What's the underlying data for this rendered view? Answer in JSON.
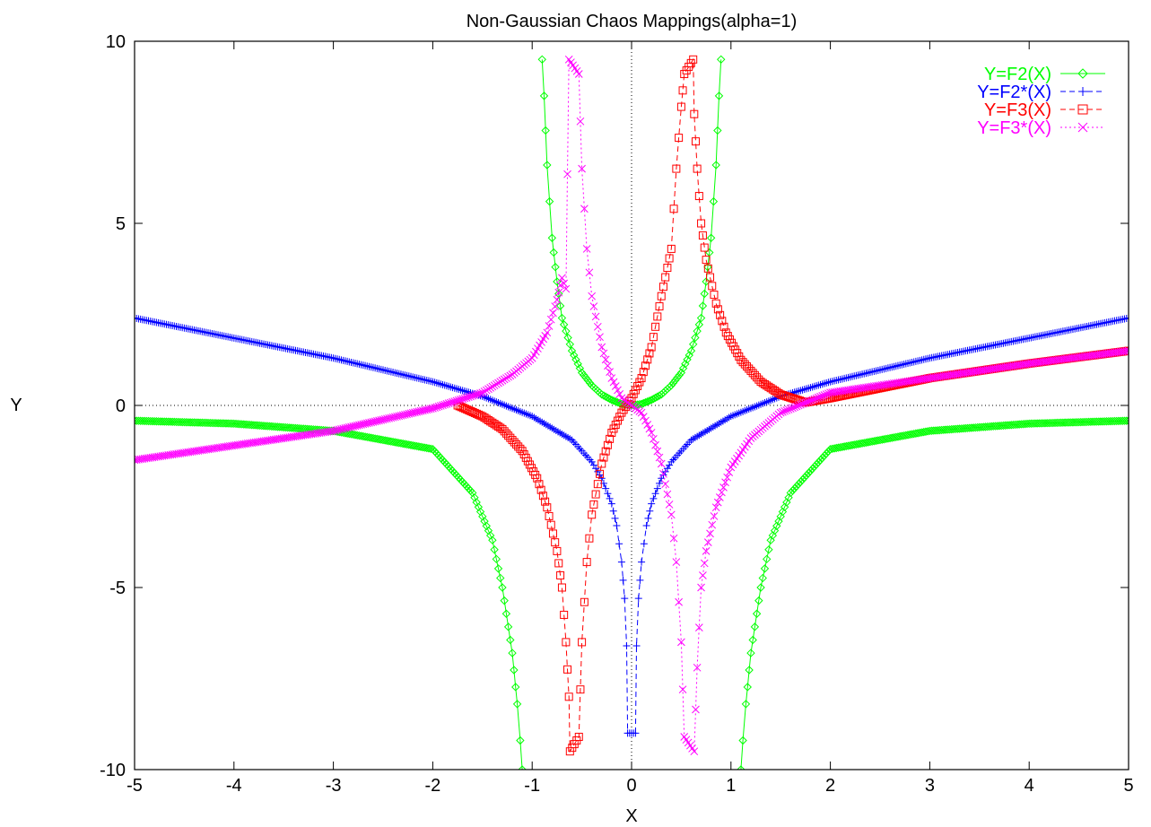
{
  "chart_data": {
    "type": "line",
    "title": "Non-Gaussian Chaos Mappings(alpha=1)",
    "xlabel": "X",
    "ylabel": "Y",
    "xlim": [
      -5,
      5
    ],
    "ylim": [
      -10,
      10
    ],
    "x_ticks": [
      "-5",
      "-4",
      "-3",
      "-2",
      "-1",
      "0",
      "1",
      "2",
      "3",
      "4",
      "5"
    ],
    "y_ticks": [
      "10",
      "5",
      "0",
      "-5",
      "-10"
    ],
    "zero_axes": true,
    "legend_position": "top-right",
    "series": [
      {
        "name": "Y=F2(X)",
        "color": "#00ff00",
        "marker": "diamond",
        "line_style": "solid",
        "description_points": {
          "x": [
            -5,
            -4,
            -3,
            -2,
            -1.6,
            -1.4,
            -1.3,
            -1.2,
            -1.15,
            -1.12,
            -1.1,
            -0.9,
            -0.88,
            -0.85,
            -0.8,
            -0.75,
            -0.7,
            -0.6,
            -0.5,
            -0.4,
            -0.3,
            -0.2,
            -0.1,
            0,
            0.1,
            0.2,
            0.3,
            0.4,
            0.5,
            0.6,
            0.7,
            0.75,
            0.8,
            0.85,
            0.88,
            0.9,
            1.1,
            1.12,
            1.15,
            1.2,
            1.3,
            1.4,
            1.6,
            2,
            3,
            4,
            5
          ],
          "y": [
            -0.42,
            -0.5,
            -0.7,
            -1.2,
            -2.4,
            -3.7,
            -5.0,
            -6.8,
            -8.2,
            -9.2,
            -10,
            9.5,
            8.5,
            6.6,
            4.6,
            3.4,
            2.4,
            1.5,
            0.9,
            0.55,
            0.3,
            0.15,
            0.04,
            0,
            0.04,
            0.15,
            0.3,
            0.55,
            0.9,
            1.5,
            2.4,
            3.4,
            4.6,
            6.6,
            8.5,
            9.5,
            -10,
            -9.2,
            -8.2,
            -6.8,
            -5.0,
            -3.7,
            -2.4,
            -1.2,
            -0.7,
            -0.5,
            -0.42
          ]
        }
      },
      {
        "name": "Y=F2*(X)",
        "color": "#0000ff",
        "marker": "plus",
        "line_style": "dashed",
        "description_points": {
          "x": [
            -5,
            -4,
            -3,
            -2,
            -1.5,
            -1,
            -0.6,
            -0.4,
            -0.3,
            -0.2,
            -0.15,
            -0.1,
            -0.07,
            -0.05,
            -0.04,
            0.04,
            0.05,
            0.07,
            0.1,
            0.15,
            0.2,
            0.3,
            0.4,
            0.6,
            1,
            1.5,
            2,
            3,
            4,
            5
          ],
          "y": [
            2.4,
            1.85,
            1.3,
            0.65,
            0.25,
            -0.3,
            -0.95,
            -1.55,
            -2.0,
            -2.7,
            -3.3,
            -4.3,
            -5.3,
            -6.6,
            -9.0,
            -9.0,
            -6.6,
            -5.3,
            -4.3,
            -3.3,
            -2.7,
            -2.0,
            -1.55,
            -0.95,
            -0.3,
            0.25,
            0.65,
            1.3,
            1.85,
            2.4
          ]
        }
      },
      {
        "name": "Y=F3(X)",
        "color": "#ff0000",
        "marker": "square",
        "line_style": "dashed",
        "description_points": {
          "x": [
            -1.75,
            -1.5,
            -1.3,
            -1.1,
            -0.95,
            -0.85,
            -0.75,
            -0.7,
            -0.66,
            -0.63,
            -0.62,
            -0.53,
            -0.5,
            -0.45,
            -0.4,
            -0.3,
            -0.2,
            -0.1,
            0,
            0.1,
            0.2,
            0.3,
            0.4,
            0.45,
            0.5,
            0.53,
            0.62,
            0.63,
            0.66,
            0.7,
            0.75,
            0.85,
            0.95,
            1.1,
            1.3,
            1.5,
            1.75,
            2,
            3,
            4,
            5
          ],
          "y": [
            0,
            -0.3,
            -0.65,
            -1.25,
            -2.0,
            -2.8,
            -4.0,
            -5.0,
            -6.5,
            -8.0,
            -9.5,
            -9.1,
            -6.5,
            -4.3,
            -3.0,
            -1.6,
            -0.75,
            -0.2,
            0.2,
            0.75,
            1.6,
            3.0,
            4.3,
            6.5,
            8.2,
            9.1,
            9.5,
            8.0,
            6.5,
            5.0,
            4.0,
            2.8,
            2.0,
            1.25,
            0.65,
            0.3,
            0.08,
            0.2,
            0.75,
            1.15,
            1.5
          ]
        }
      },
      {
        "name": "Y=F3*(X)",
        "color": "#ff00ff",
        "marker": "x",
        "line_style": "dotted",
        "description_points": {
          "x": [
            -5,
            -4,
            -3,
            -2,
            -1.5,
            -1.2,
            -1,
            -0.85,
            -0.75,
            -0.7,
            -0.66,
            -0.63,
            -0.53,
            -0.5,
            -0.45,
            -0.4,
            -0.3,
            -0.2,
            -0.1,
            0,
            0.1,
            0.2,
            0.3,
            0.4,
            0.45,
            0.5,
            0.53,
            0.63,
            0.66,
            0.7,
            0.75,
            0.85,
            1,
            1.2,
            1.5,
            2,
            3,
            4,
            5
          ],
          "y": [
            -1.5,
            -1.1,
            -0.7,
            -0.08,
            0.35,
            0.85,
            1.3,
            2.0,
            2.9,
            3.5,
            3.2,
            9.5,
            9.1,
            6.5,
            4.3,
            3.0,
            1.6,
            0.75,
            0.2,
            0,
            -0.2,
            -0.75,
            -1.6,
            -3.0,
            -4.3,
            -6.5,
            -9.1,
            -9.5,
            -7.2,
            -5.0,
            -4.0,
            -2.8,
            -1.7,
            -0.9,
            -0.2,
            0.35,
            0.75,
            1.15,
            1.5
          ]
        }
      }
    ]
  }
}
